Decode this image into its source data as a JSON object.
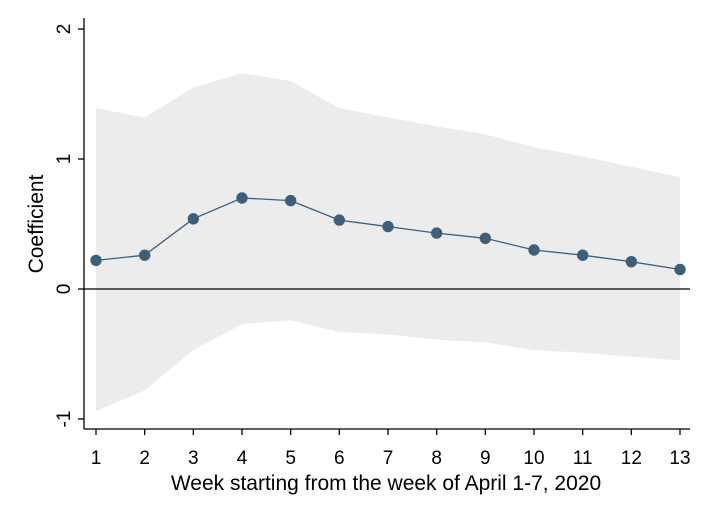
{
  "chart_data": {
    "type": "line",
    "title": "",
    "xlabel": "Week starting from the week of April 1-7, 2020",
    "ylabel": "Coefficient",
    "x": [
      1,
      2,
      3,
      4,
      5,
      6,
      7,
      8,
      9,
      10,
      11,
      12,
      13
    ],
    "x_tick_labels": [
      "1",
      "2",
      "3",
      "4",
      "5",
      "6",
      "7",
      "8",
      "9",
      "10",
      "11",
      "12",
      "13"
    ],
    "y_tick_labels": [
      "-1",
      "0",
      "1",
      "2"
    ],
    "y_ticks": [
      -1,
      0,
      1,
      2
    ],
    "xlim": [
      0.98,
      13.2
    ],
    "ylim": [
      -1.1,
      2.1
    ],
    "reference_line": 0,
    "grid": false,
    "legend": "none",
    "series": [
      {
        "values": [
          0.22,
          0.26,
          0.54,
          0.7,
          0.68,
          0.53,
          0.48,
          0.43,
          0.39,
          0.3,
          0.26,
          0.21,
          0.15
        ]
      }
    ],
    "confidence_band": {
      "upper": [
        1.39,
        1.32,
        1.55,
        1.66,
        1.6,
        1.39,
        1.32,
        1.25,
        1.19,
        1.09,
        1.02,
        0.94,
        0.86
      ],
      "lower": [
        -0.94,
        -0.78,
        -0.47,
        -0.27,
        -0.24,
        -0.33,
        -0.35,
        -0.39,
        -0.41,
        -0.47,
        -0.49,
        -0.52,
        -0.55
      ]
    },
    "colors": {
      "line": "#3e5f7a",
      "marker": "#3e5f7a",
      "band": "#ececec",
      "axis": "#000000",
      "zero_line": "#000000"
    }
  }
}
